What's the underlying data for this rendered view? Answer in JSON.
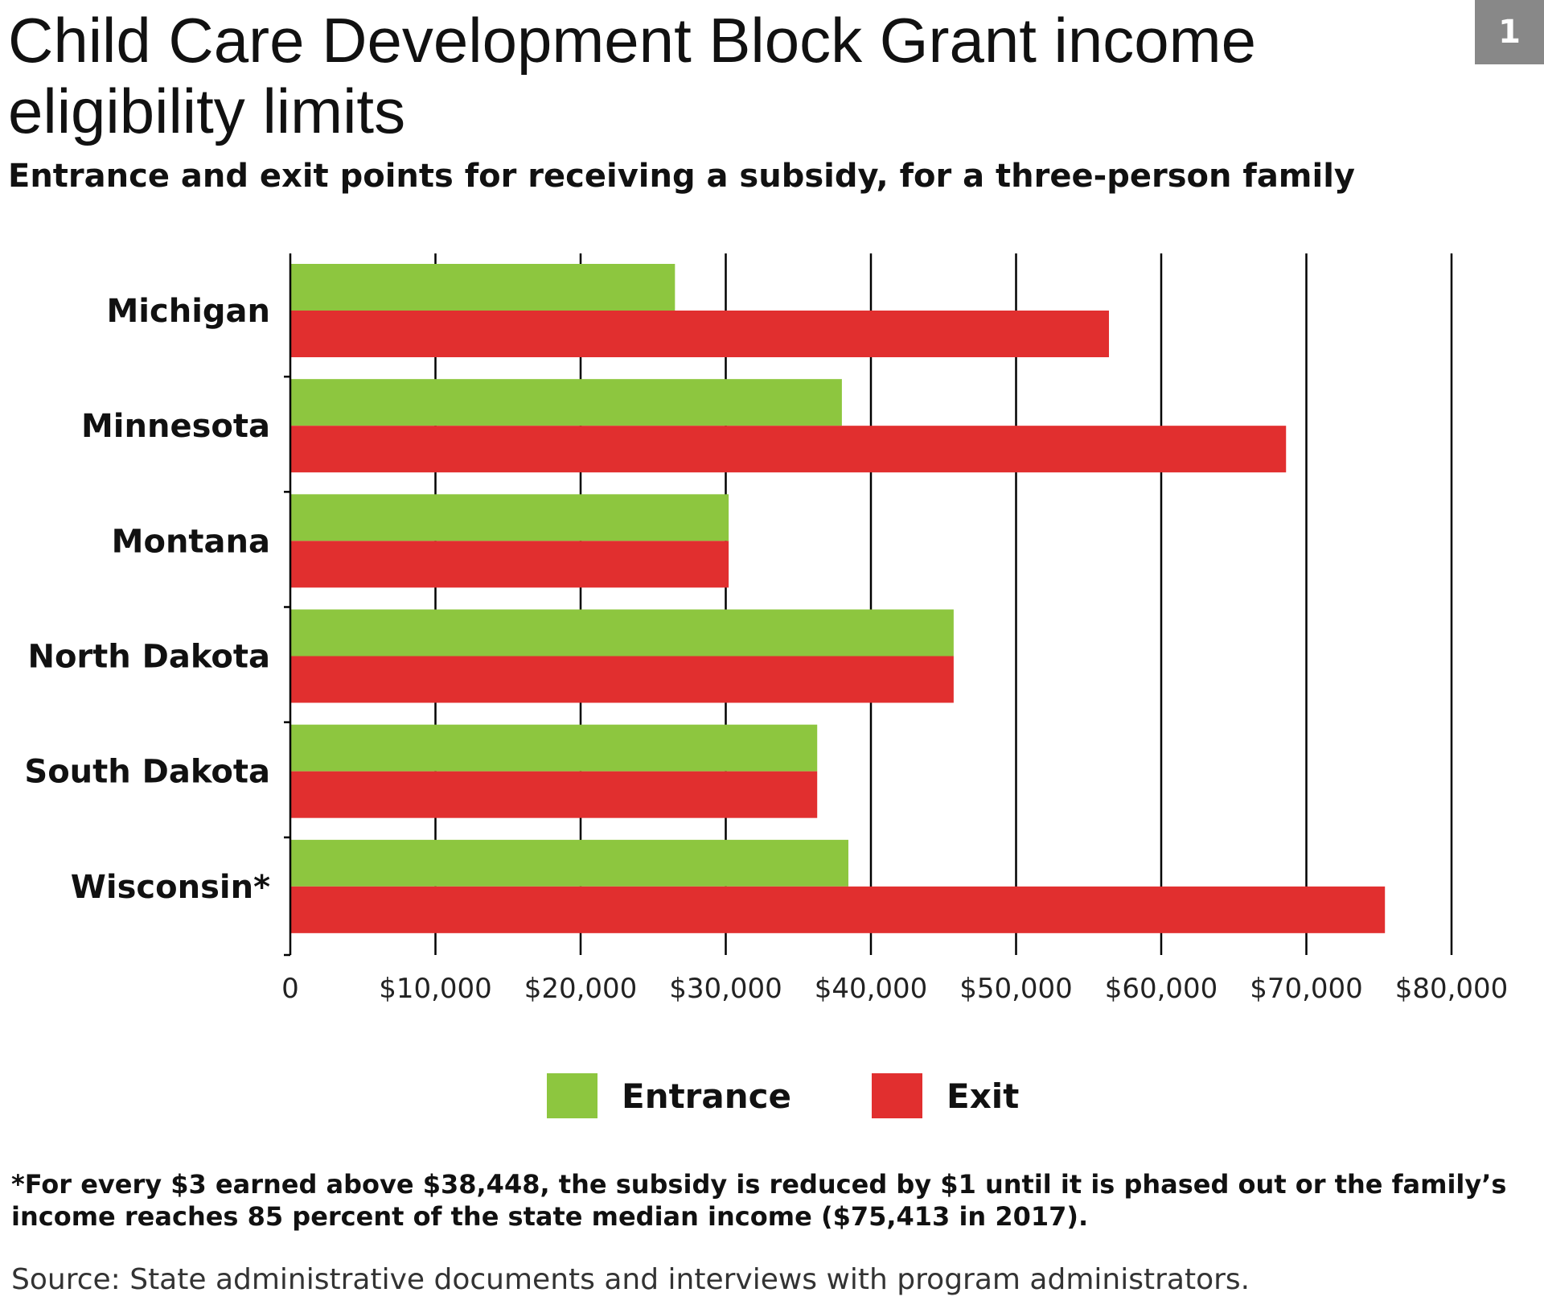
{
  "title": "Child Care Development Block Grant income eligibility limits",
  "subtitle": "Entrance and exit points for receiving a subsidy, for a three-person family",
  "badge": "1",
  "footnote": "*For every $3 earned above $38,448, the subsidy is reduced by $1 until it is phased out or the family’s income reaches 85 percent of the state median income ($75,413 in 2017).",
  "source": "Source: State administrative documents and interviews with program administrators.",
  "chart_data": {
    "type": "bar",
    "orientation": "horizontal",
    "categories": [
      "Michigan",
      "Minnesota",
      "Montana",
      "North Dakota",
      "South Dakota",
      "Wisconsin*"
    ],
    "series": [
      {
        "name": "Entrance",
        "color": "#8dc63f",
        "values": [
          26500,
          38000,
          30200,
          45700,
          36300,
          38448
        ]
      },
      {
        "name": "Exit",
        "color": "#e12f2f",
        "values": [
          56400,
          68600,
          30200,
          45700,
          36300,
          75413
        ]
      }
    ],
    "xlim": [
      0,
      80000
    ],
    "x_ticks": [
      0,
      10000,
      20000,
      30000,
      40000,
      50000,
      60000,
      70000,
      80000
    ],
    "x_tick_labels": [
      "0",
      "$10,000",
      "$20,000",
      "$30,000",
      "$40,000",
      "$50,000",
      "$60,000",
      "$70,000",
      "$80,000"
    ],
    "grid": true,
    "legend_position": "bottom-center",
    "xlabel": "",
    "ylabel": ""
  }
}
